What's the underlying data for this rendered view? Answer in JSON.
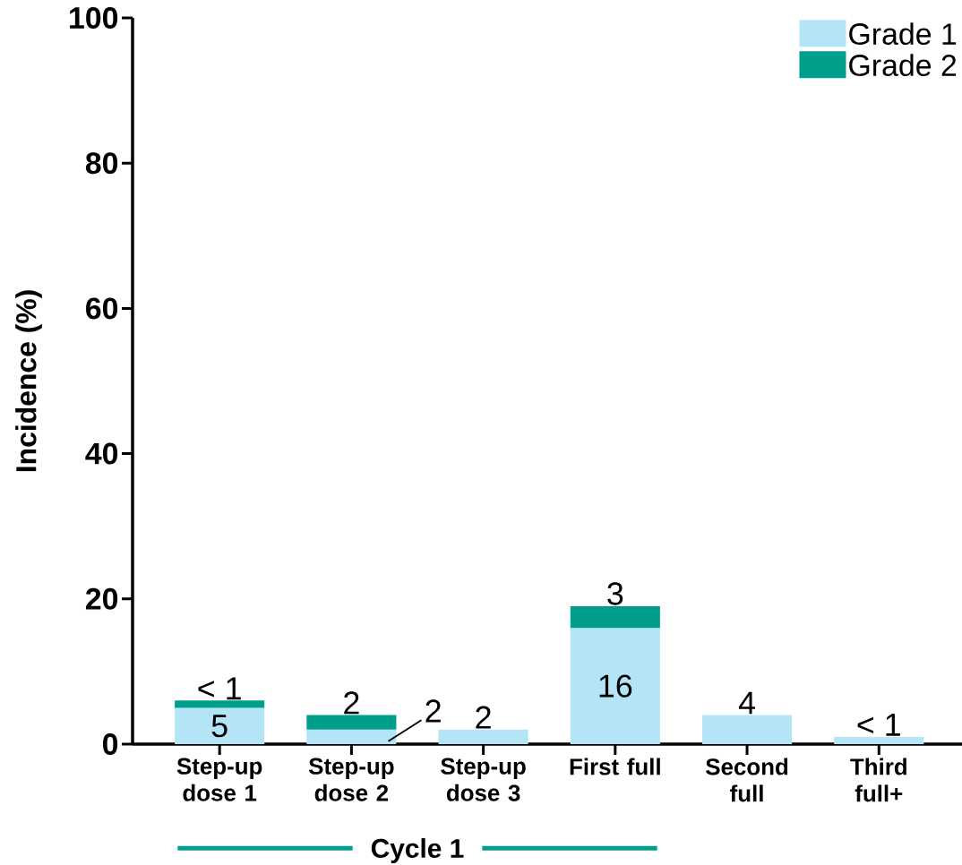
{
  "chart_data": {
    "type": "bar",
    "stacked": true,
    "ylabel": "Incidence (%)",
    "categories": [
      "Step-up dose 1",
      "Step-up dose 2",
      "Step-up dose 3",
      "First full",
      "Second full",
      "Third full+"
    ],
    "series": [
      {
        "name": "Grade 1",
        "color": "#b3e5f7",
        "values": [
          5,
          2,
          2,
          16,
          4,
          1
        ],
        "value_labels": [
          "5",
          "2",
          "2",
          "16",
          "4",
          "< 1"
        ]
      },
      {
        "name": "Grade 2",
        "color": "#009e8c",
        "values": [
          1,
          2,
          null,
          3,
          null,
          null
        ],
        "value_labels": [
          "< 1",
          "2",
          null,
          "3",
          null,
          null
        ]
      }
    ],
    "ylim": [
      0,
      100
    ],
    "yticks": [
      0,
      20,
      40,
      60,
      80,
      100
    ],
    "legend": "top right",
    "grid": false,
    "annotations": [
      "Cycle 1"
    ]
  }
}
